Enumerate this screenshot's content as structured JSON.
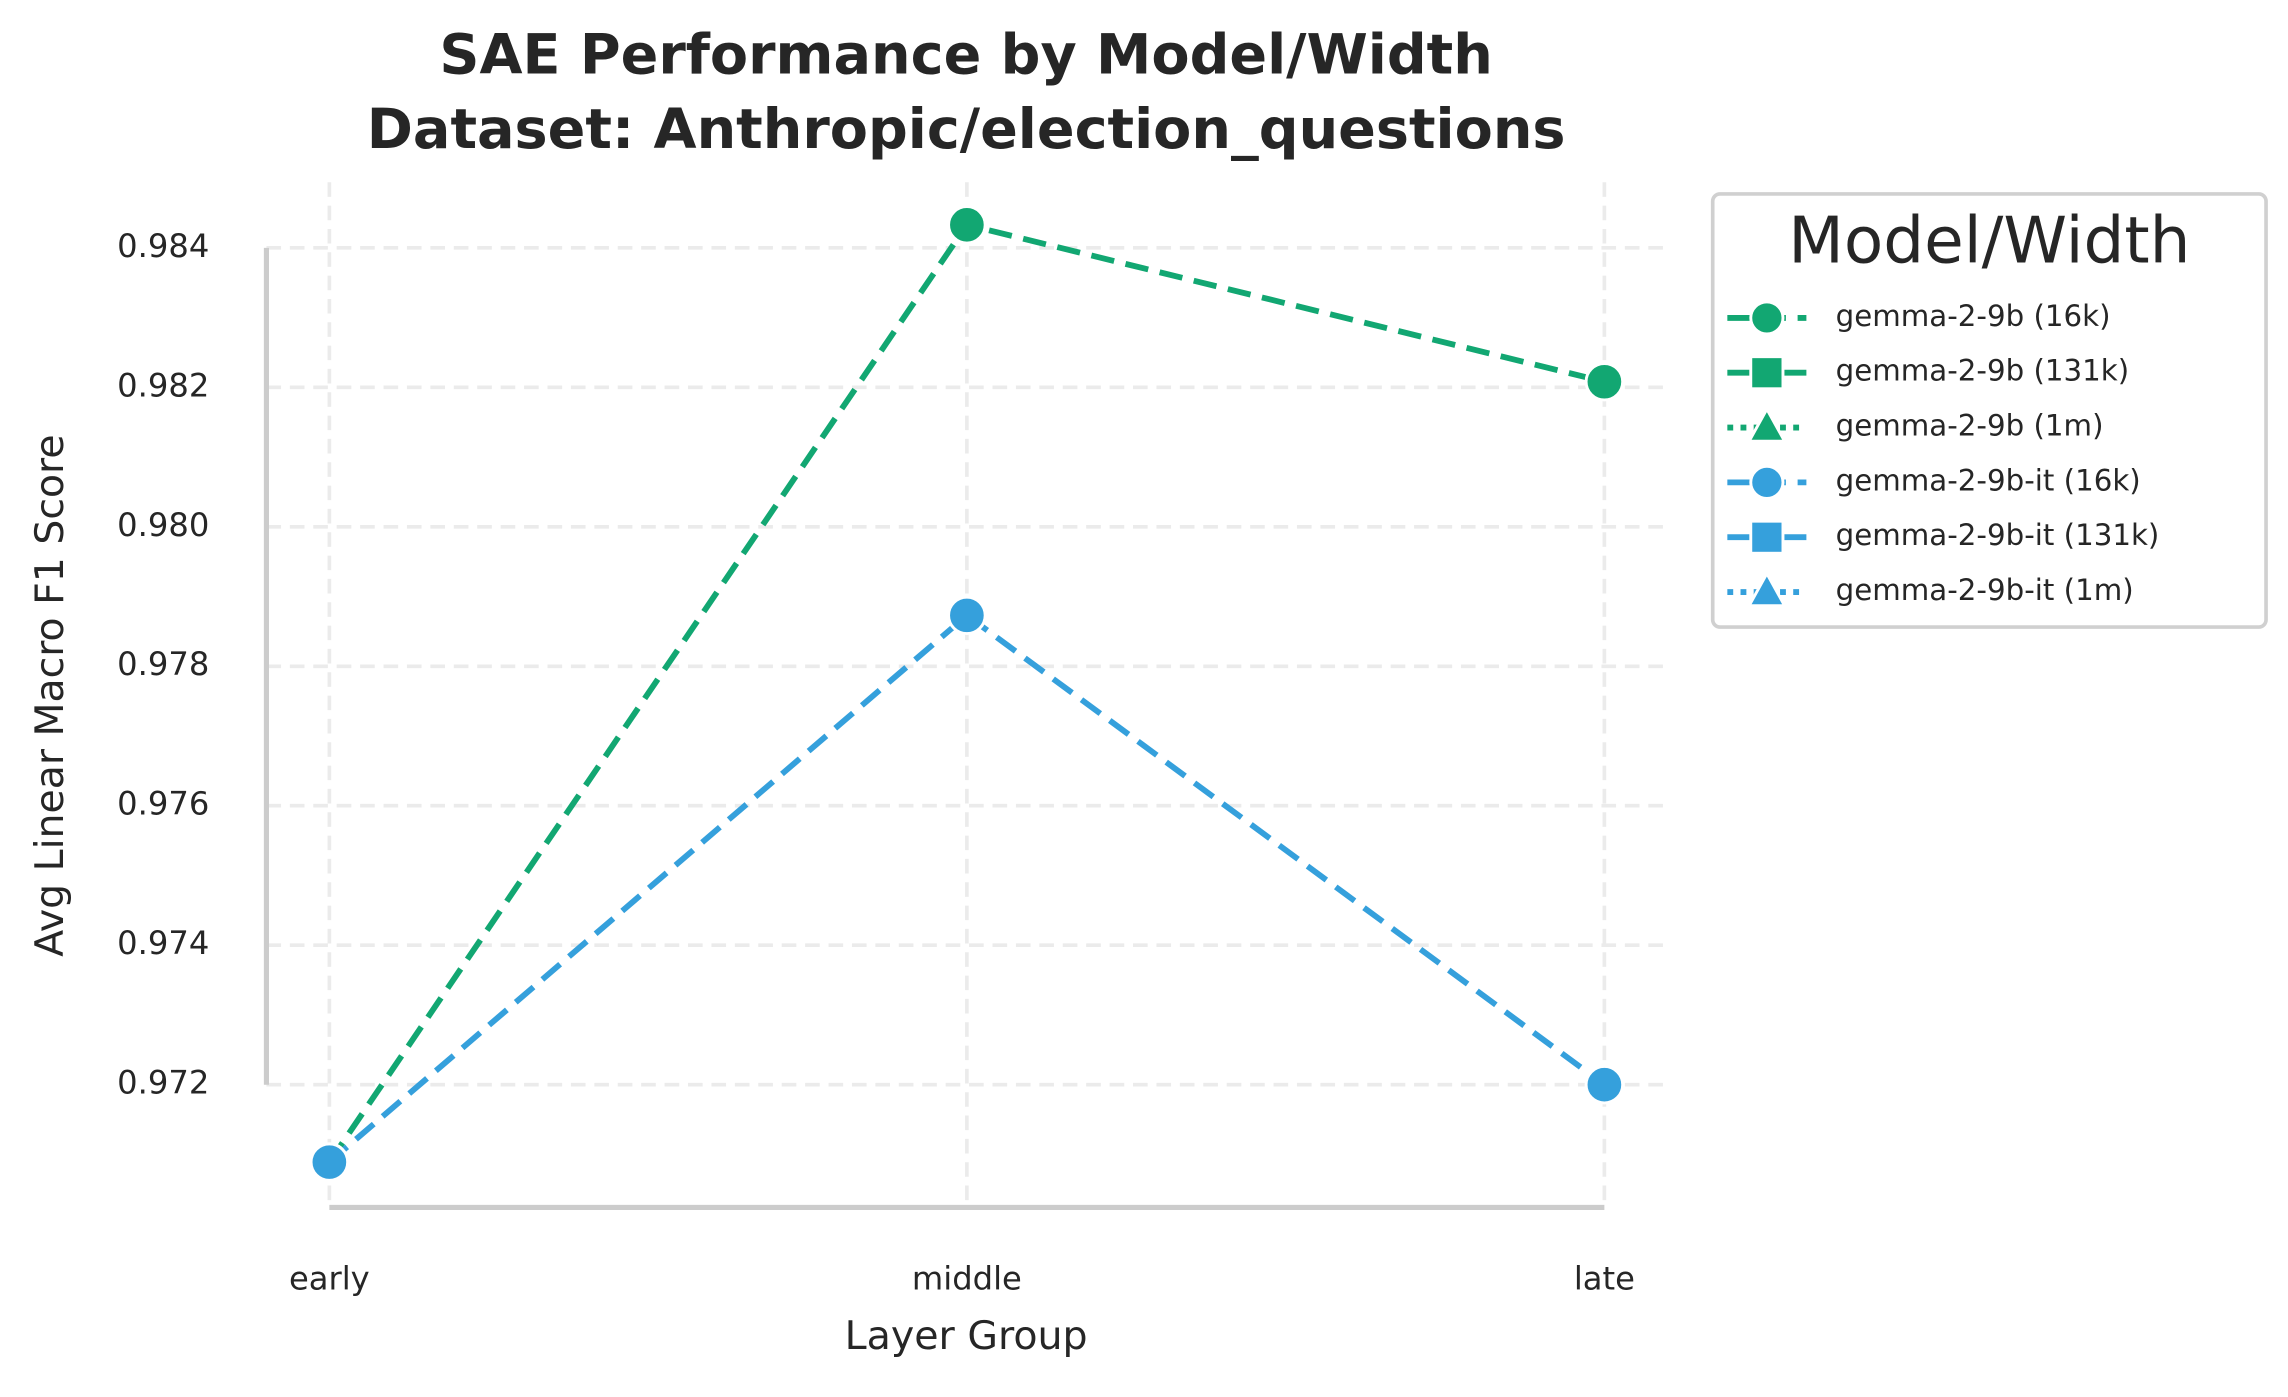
{
  "chart_data": {
    "type": "line",
    "title": "SAE Performance by Model/Width",
    "subtitle": "Dataset: Anthropic/election_questions",
    "xlabel": "Layer Group",
    "ylabel": "Avg Linear Macro F1 Score",
    "categories": [
      "early",
      "middle",
      "late"
    ],
    "ylim": [
      0.97024,
      0.98494
    ],
    "yticks": [
      0.972,
      0.974,
      0.976,
      0.978,
      {
        "value": 0.98,
        "label": "0.980"
      },
      0.982,
      0.984
    ],
    "grid": true,
    "legend_title": "Model/Width",
    "legend": "outside upper right",
    "series": [
      {
        "name": "gemma-2-9b (16k)",
        "color": "#12a772",
        "marker": "circle",
        "linestyle": "dashed",
        "values": [
          0.97089,
          0.98433,
          0.98208
        ]
      },
      {
        "name": "gemma-2-9b (131k)",
        "color": "#12a772",
        "marker": "square",
        "linestyle": "solid",
        "values": [
          null,
          null,
          null
        ]
      },
      {
        "name": "gemma-2-9b (1m)",
        "color": "#12a772",
        "marker": "triangle",
        "linestyle": "dotted",
        "values": [
          null,
          null,
          null
        ]
      },
      {
        "name": "gemma-2-9b-it (16k)",
        "color": "#35a0dc",
        "marker": "circle",
        "linestyle": "dashed",
        "values": [
          0.97089,
          0.97873,
          0.972
        ]
      },
      {
        "name": "gemma-2-9b-it (131k)",
        "color": "#35a0dc",
        "marker": "square",
        "linestyle": "solid",
        "values": [
          null,
          null,
          null
        ]
      },
      {
        "name": "gemma-2-9b-it (1m)",
        "color": "#35a0dc",
        "marker": "triangle",
        "linestyle": "dotted",
        "values": [
          null,
          null,
          null
        ]
      }
    ]
  }
}
